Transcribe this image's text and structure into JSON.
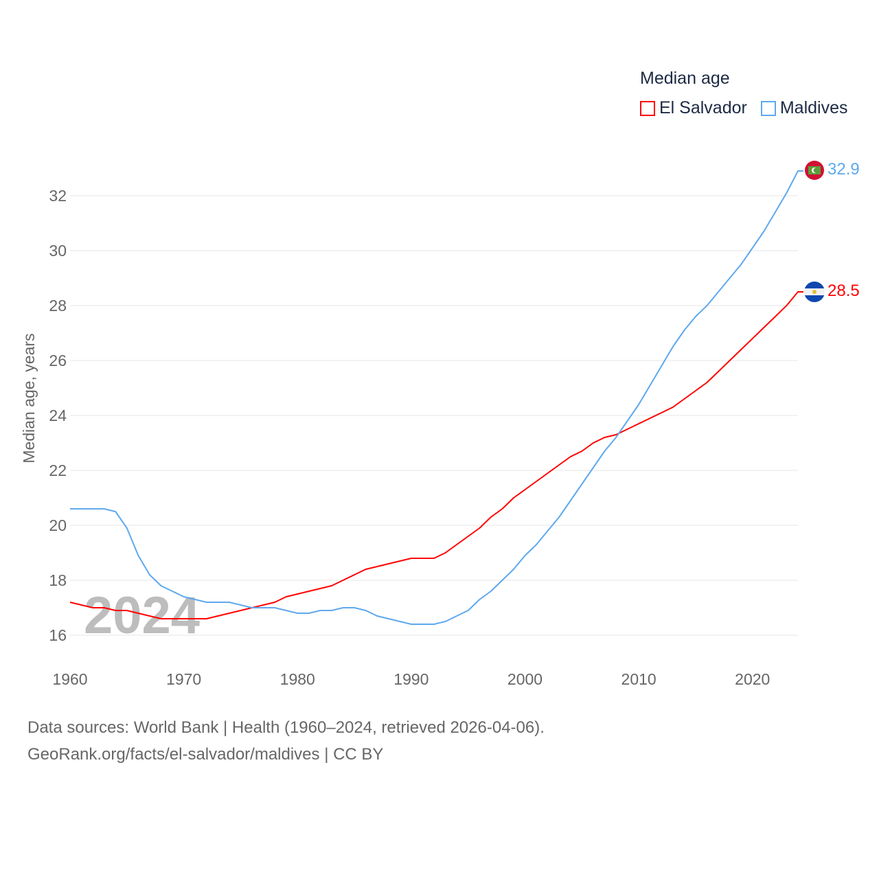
{
  "chart_data": {
    "type": "line",
    "title": "Median age",
    "ylabel": "Median age, years",
    "xlabel": "",
    "ylim": [
      15,
      33
    ],
    "xlim": [
      1960,
      2024
    ],
    "yticks": [
      16,
      18,
      20,
      22,
      24,
      26,
      28,
      30,
      32
    ],
    "xticks": [
      1960,
      1970,
      1980,
      1990,
      2000,
      2010,
      2020
    ],
    "grid": true,
    "legend_position": "top-right",
    "watermark_year": "2024",
    "x": [
      1960,
      1961,
      1962,
      1963,
      1964,
      1965,
      1966,
      1967,
      1968,
      1969,
      1970,
      1971,
      1972,
      1973,
      1974,
      1975,
      1976,
      1977,
      1978,
      1979,
      1980,
      1981,
      1982,
      1983,
      1984,
      1985,
      1986,
      1987,
      1988,
      1989,
      1990,
      1991,
      1992,
      1993,
      1994,
      1995,
      1996,
      1997,
      1998,
      1999,
      2000,
      2001,
      2002,
      2003,
      2004,
      2005,
      2006,
      2007,
      2008,
      2009,
      2010,
      2011,
      2012,
      2013,
      2014,
      2015,
      2016,
      2017,
      2018,
      2019,
      2020,
      2021,
      2022,
      2023,
      2024
    ],
    "series": [
      {
        "name": "El Salvador",
        "color": "#ff0000",
        "end_label": "28.5",
        "values": [
          17.2,
          17.1,
          17.0,
          17.0,
          16.9,
          16.9,
          16.8,
          16.7,
          16.6,
          16.6,
          16.6,
          16.6,
          16.6,
          16.7,
          16.8,
          16.9,
          17.0,
          17.1,
          17.2,
          17.4,
          17.5,
          17.6,
          17.7,
          17.8,
          18.0,
          18.2,
          18.4,
          18.5,
          18.6,
          18.7,
          18.8,
          18.8,
          18.8,
          19.0,
          19.3,
          19.6,
          19.9,
          20.3,
          20.6,
          21.0,
          21.3,
          21.6,
          21.9,
          22.2,
          22.5,
          22.7,
          23.0,
          23.2,
          23.3,
          23.5,
          23.7,
          23.9,
          24.1,
          24.3,
          24.6,
          24.9,
          25.2,
          25.6,
          26.0,
          26.4,
          26.8,
          27.2,
          27.6,
          28.0,
          28.5
        ]
      },
      {
        "name": "Maldives",
        "color": "#5ea8ee",
        "end_label": "32.9",
        "values": [
          20.6,
          20.6,
          20.6,
          20.6,
          20.5,
          19.9,
          18.9,
          18.2,
          17.8,
          17.6,
          17.4,
          17.3,
          17.2,
          17.2,
          17.2,
          17.1,
          17.0,
          17.0,
          17.0,
          16.9,
          16.8,
          16.8,
          16.9,
          16.9,
          17.0,
          17.0,
          16.9,
          16.7,
          16.6,
          16.5,
          16.4,
          16.4,
          16.4,
          16.5,
          16.7,
          16.9,
          17.3,
          17.6,
          18.0,
          18.4,
          18.9,
          19.3,
          19.8,
          20.3,
          20.9,
          21.5,
          22.1,
          22.7,
          23.2,
          23.8,
          24.4,
          25.1,
          25.8,
          26.5,
          27.1,
          27.6,
          28.0,
          28.5,
          29.0,
          29.5,
          30.1,
          30.7,
          31.4,
          32.1,
          32.9
        ]
      }
    ]
  },
  "footer": {
    "source_line": "Data sources: World Bank | Health (1960–2024, retrieved 2026-04-06).",
    "url_line": "GeoRank.org/facts/el-salvador/maldives | CC BY"
  }
}
